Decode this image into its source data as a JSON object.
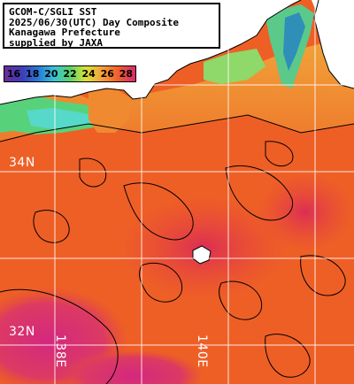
{
  "title": {
    "lines": [
      "GCOM-C/SGLI SST",
      "2025/06/30(UTC) Day Composite",
      "Kanagawa Prefecture",
      "supplied by JAXA"
    ]
  },
  "legend": {
    "labels": [
      "16",
      "18",
      "20",
      "22",
      "24",
      "26",
      "28"
    ]
  },
  "grid": {
    "lat_labels": [
      "34N",
      "32N"
    ],
    "lon_labels": [
      "138E",
      "140E"
    ]
  },
  "colors": {
    "land": "#ffffff",
    "coastline": "#000000",
    "grid": "#ffffff",
    "sst_warm": "#ef5d24",
    "sst_hot": "#e0324e",
    "sst_hottest": "#d42a7c",
    "sst_cool": "#f0a13a",
    "sst_cold": "#4fcf8a",
    "sst_coldest": "#2f3ea8"
  }
}
